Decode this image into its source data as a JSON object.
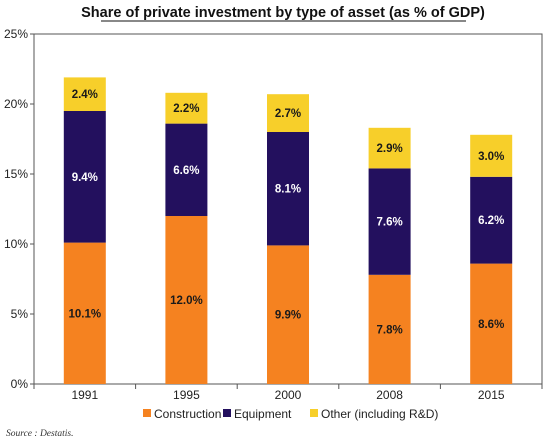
{
  "chart_data": {
    "type": "bar",
    "stacked": true,
    "title": "Share of private investment by type of asset (as % of GDP)",
    "categories": [
      "1991",
      "1995",
      "2000",
      "2008",
      "2015"
    ],
    "series": [
      {
        "name": "Construction",
        "color": "#f58220",
        "label_color": "#1a1a1a",
        "values": [
          10.1,
          12.0,
          9.9,
          7.8,
          8.6
        ],
        "labels": [
          "10.1%",
          "12.0%",
          "9.9%",
          "7.8%",
          "8.6%"
        ]
      },
      {
        "name": "Equipment",
        "color": "#23105e",
        "label_color": "#ffffff",
        "values": [
          9.4,
          6.6,
          8.1,
          7.6,
          6.2
        ],
        "labels": [
          "9.4%",
          "6.6%",
          "8.1%",
          "7.6%",
          "6.2%"
        ]
      },
      {
        "name": "Other (including R&D)",
        "color": "#f7cf2a",
        "label_color": "#1a1a1a",
        "values": [
          2.4,
          2.2,
          2.7,
          2.9,
          3.0
        ],
        "labels": [
          "2.4%",
          "2.2%",
          "2.7%",
          "2.9%",
          "3.0%"
        ]
      }
    ],
    "y_ticks": [
      "0%",
      "5%",
      "10%",
      "15%",
      "20%",
      "25%"
    ],
    "ylim": [
      0,
      25
    ],
    "grid": false,
    "legend_position": "bottom"
  },
  "source": "Source : Destatis."
}
